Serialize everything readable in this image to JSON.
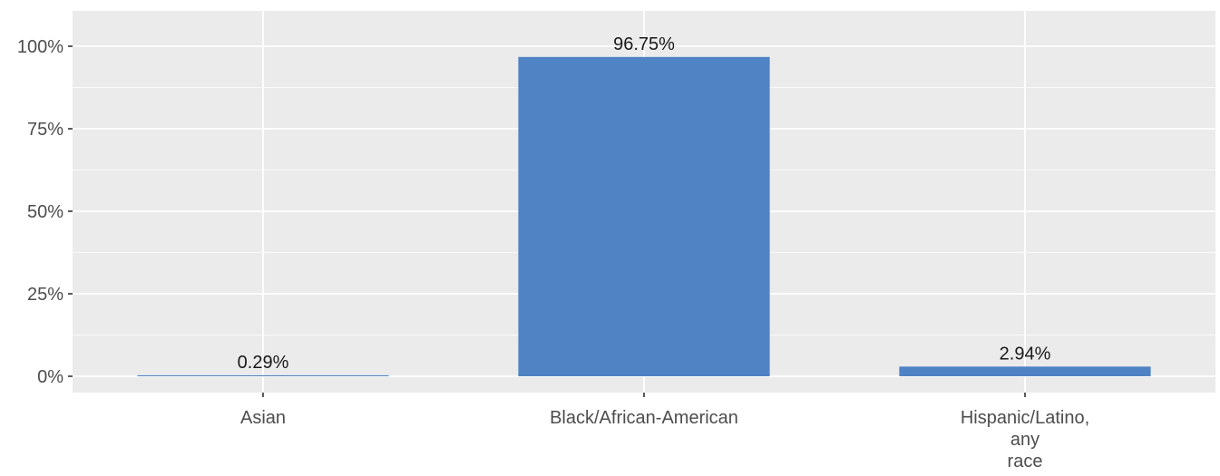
{
  "chart_data": {
    "type": "bar",
    "categories": [
      "Asian",
      "Black/African-American",
      "Hispanic/Latino, any race"
    ],
    "category_lines": [
      [
        "Asian"
      ],
      [
        "Black/African-American"
      ],
      [
        "Hispanic/Latino,",
        "any",
        "race"
      ]
    ],
    "values": [
      0.29,
      96.75,
      2.94
    ],
    "data_labels": [
      "0.29%",
      "96.75%",
      "2.94%"
    ],
    "ylim": [
      0,
      100
    ],
    "y_ticks": [
      0,
      25,
      50,
      75,
      100
    ],
    "y_tick_labels": [
      "0%",
      "25%",
      "50%",
      "75%",
      "100%"
    ],
    "title": "",
    "xlabel": "",
    "ylabel": "",
    "grid": true,
    "colors": {
      "bar": "#4f83c4",
      "panel": "#ebebeb",
      "grid_major": "#ffffff",
      "tick": "#333333"
    }
  }
}
